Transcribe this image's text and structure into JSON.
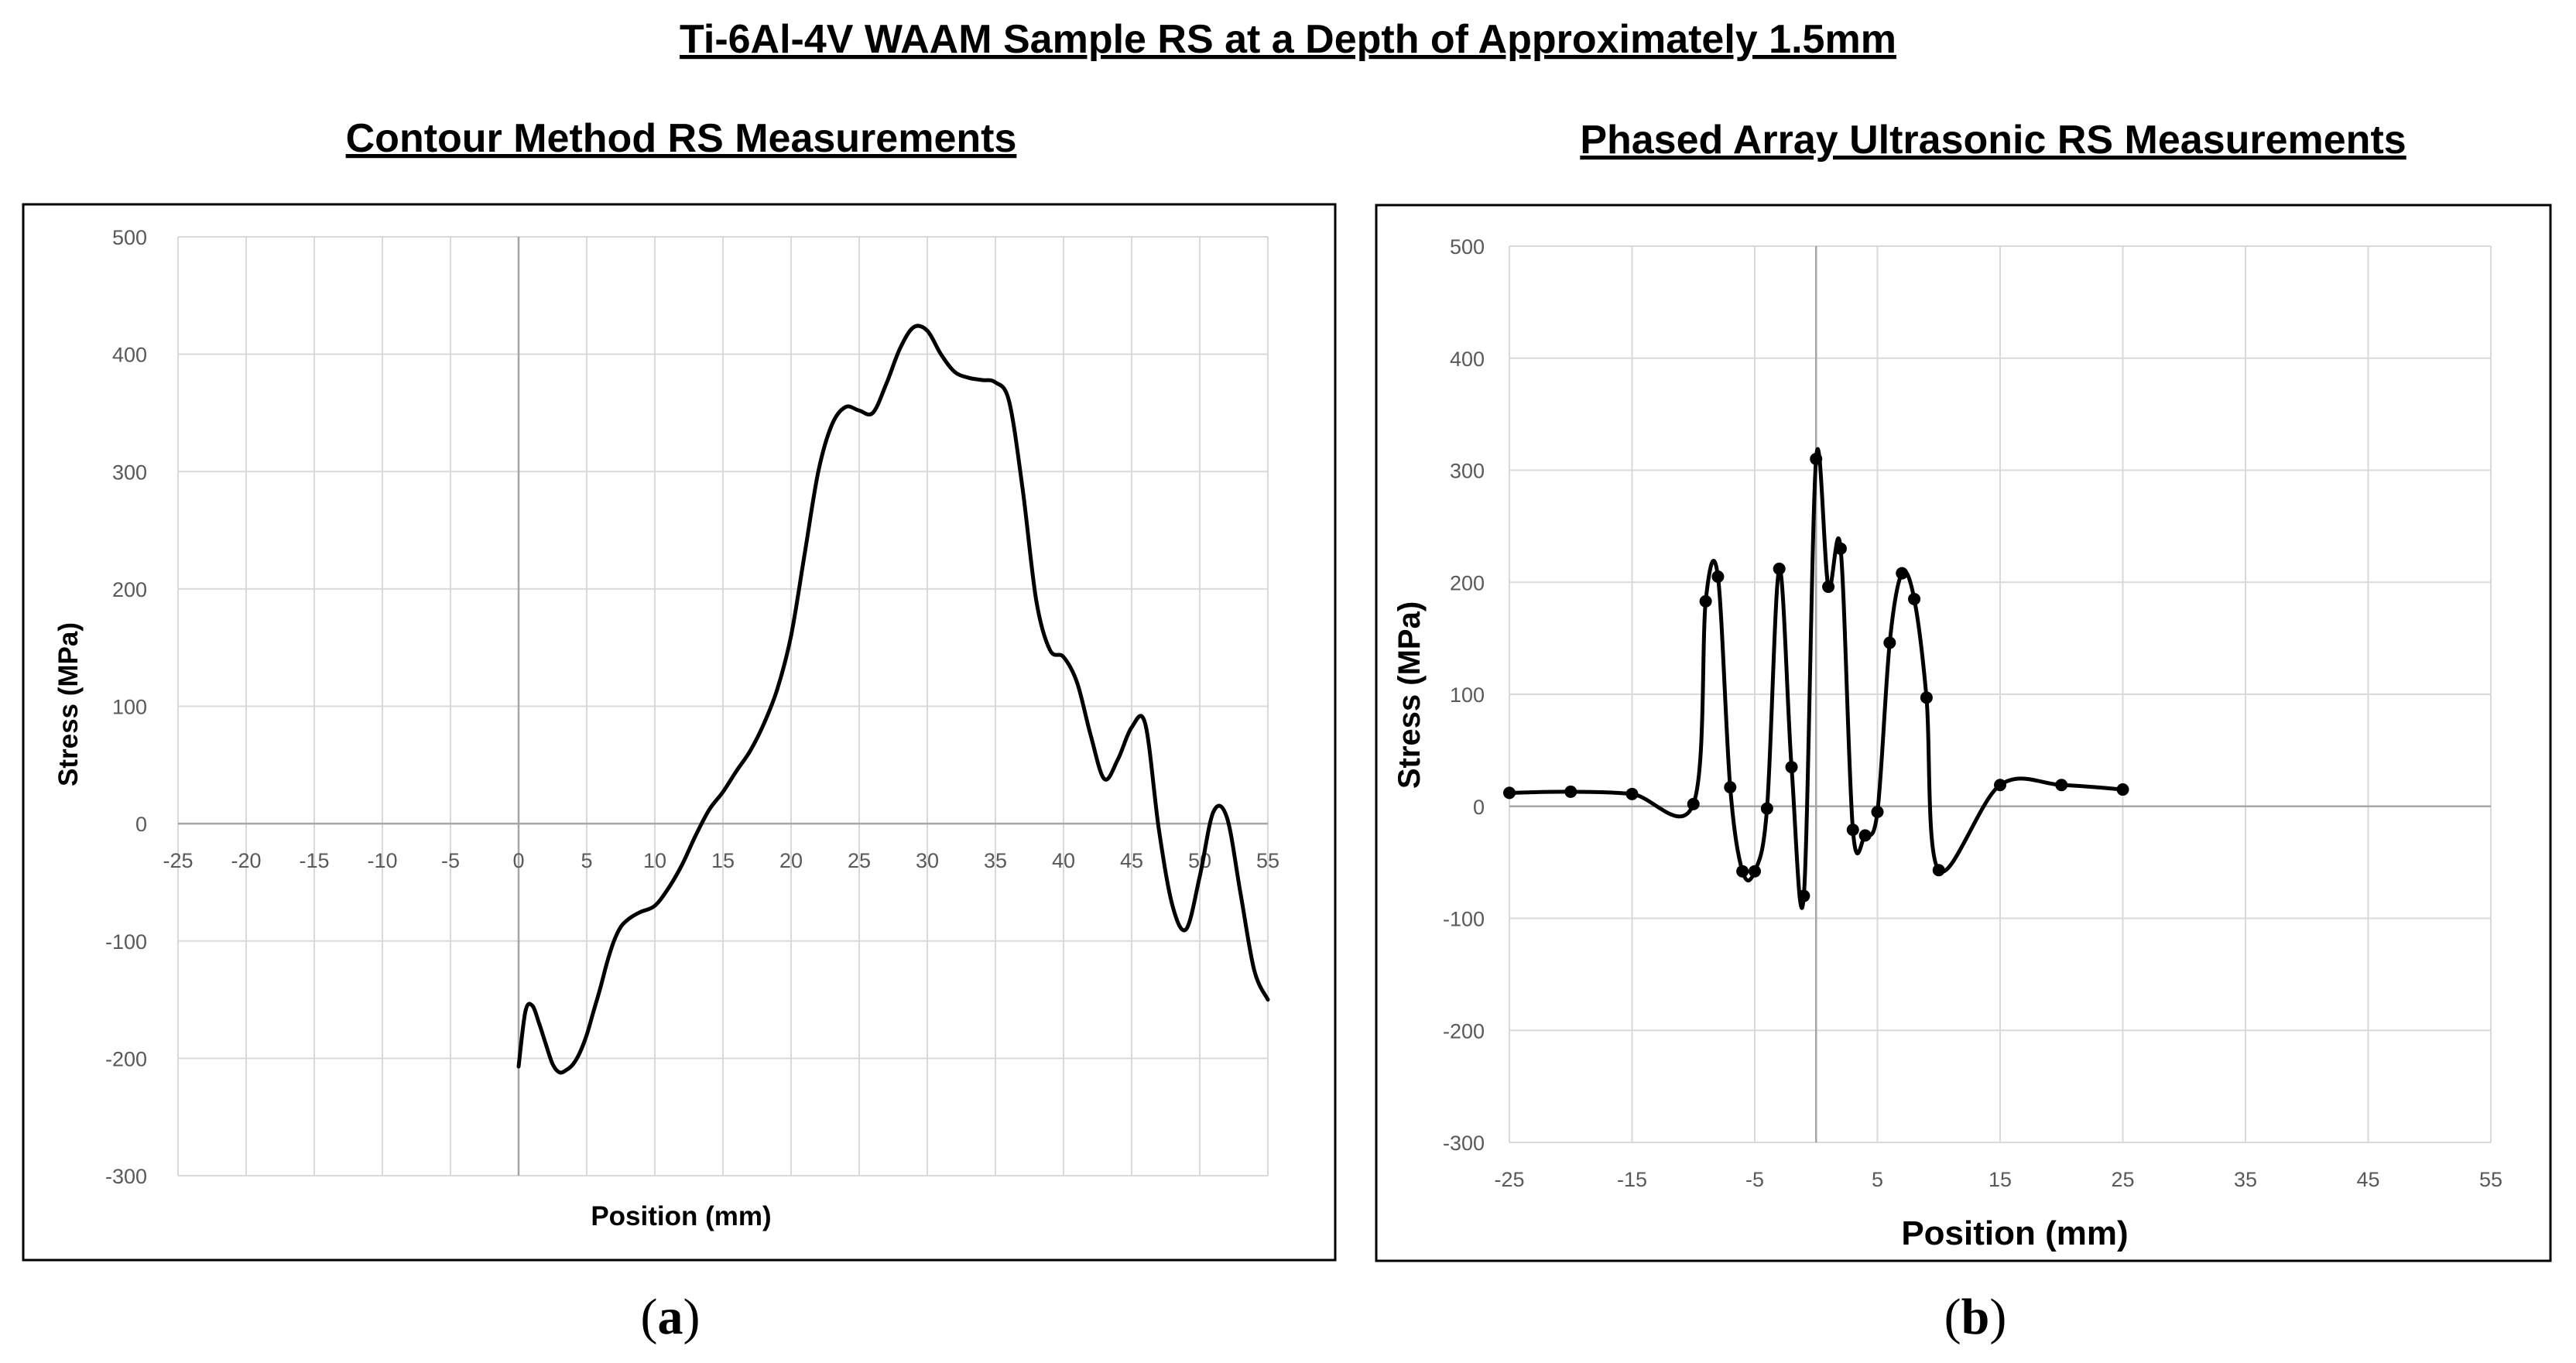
{
  "figure": {
    "title": "Ti-6Al-4V WAAM Sample RS at a Depth of Approximately 1.5mm",
    "captions": [
      "a",
      "b"
    ]
  },
  "chart_data": [
    {
      "id": "a",
      "type": "line",
      "title": "Contour Method RS Measurements",
      "xlabel": "Position (mm)",
      "ylabel": "Stress (MPa)",
      "xlim": [
        -25,
        55
      ],
      "ylim": [
        -300,
        500
      ],
      "xticks": [
        -25,
        -20,
        -15,
        -10,
        -5,
        0,
        5,
        10,
        15,
        20,
        25,
        30,
        35,
        40,
        45,
        50,
        55
      ],
      "yticks": [
        -300,
        -200,
        -100,
        0,
        100,
        200,
        300,
        400,
        500
      ],
      "tick_labels_x": [
        "-25",
        "-20",
        "-15",
        "-10",
        "-5",
        "0",
        "5",
        "10",
        "15",
        "20",
        "25",
        "30",
        "35",
        "40",
        "45",
        "50",
        "55"
      ],
      "tick_labels_y": [
        "-300",
        "-200",
        "-100",
        "0",
        "100",
        "200",
        "300",
        "400",
        "500"
      ],
      "grid": true,
      "zero_axis_line": true,
      "markers": false,
      "series": [
        {
          "name": "Contour method",
          "x": [
            0,
            0.5,
            1,
            1.5,
            2,
            2.5,
            3,
            3.5,
            4,
            4.5,
            5,
            5.5,
            6,
            6.5,
            7,
            7.5,
            8,
            8.5,
            9,
            10,
            11,
            12,
            13,
            14,
            15,
            16,
            17,
            18,
            19,
            20,
            21,
            22,
            23,
            24,
            25,
            26,
            27,
            28,
            29,
            30,
            31,
            32,
            33,
            34,
            35,
            36,
            37,
            38,
            39,
            40,
            41,
            42,
            43,
            44,
            45,
            46,
            47,
            48,
            49,
            50,
            51,
            52,
            53,
            54,
            55
          ],
          "y": [
            -207,
            -160,
            -155,
            -170,
            -188,
            -205,
            -212,
            -210,
            -205,
            -195,
            -180,
            -160,
            -140,
            -118,
            -100,
            -88,
            -82,
            -78,
            -75,
            -70,
            -55,
            -35,
            -10,
            12,
            27,
            45,
            62,
            85,
            115,
            160,
            230,
            300,
            340,
            355,
            352,
            350,
            375,
            405,
            423,
            420,
            400,
            385,
            380,
            378,
            376,
            360,
            285,
            190,
            148,
            142,
            120,
            75,
            38,
            55,
            82,
            85,
            -5,
            -70,
            -90,
            -45,
            10,
            5,
            -60,
            -125,
            -150
          ]
        }
      ]
    },
    {
      "id": "b",
      "type": "line",
      "title": "Phased Array Ultrasonic RS Measurements",
      "xlabel": "Position  (mm)",
      "ylabel": "Stress (MPa)",
      "xlim": [
        -25,
        55
      ],
      "ylim": [
        -300,
        500
      ],
      "xticks": [
        -25,
        -15,
        -5,
        5,
        15,
        25,
        35,
        45,
        55
      ],
      "yticks": [
        -300,
        -200,
        -100,
        0,
        100,
        200,
        300,
        400,
        500
      ],
      "tick_labels_x": [
        "-25",
        "-15",
        "-5",
        "5",
        "15",
        "25",
        "35",
        "45",
        "55"
      ],
      "tick_labels_y": [
        "-300",
        "-200",
        "-100",
        "0",
        "100",
        "200",
        "300",
        "400",
        "500"
      ],
      "grid": true,
      "zero_axis_line": true,
      "markers": true,
      "series": [
        {
          "name": "Phased array ultrasonic",
          "x": [
            -25,
            -20,
            -15,
            -10,
            -9,
            -8,
            -7,
            -6,
            -5,
            -4,
            -3,
            -2,
            -1,
            0,
            1,
            2,
            3,
            4,
            5,
            6,
            7,
            8,
            9,
            10,
            15,
            20,
            25
          ],
          "y": [
            12,
            13,
            11,
            2,
            183,
            205,
            17,
            -58,
            -58,
            -2,
            212,
            35,
            -80,
            310,
            196,
            230,
            -21,
            -26,
            -5,
            146,
            208,
            185,
            97,
            -57,
            19,
            19,
            15
          ]
        }
      ]
    }
  ]
}
